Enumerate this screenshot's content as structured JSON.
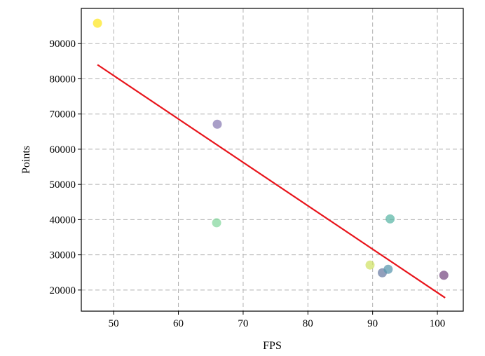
{
  "chart_data": {
    "type": "scatter",
    "title": "",
    "xlabel": "FPS",
    "ylabel": "Points",
    "xlim": [
      45,
      104
    ],
    "ylim": [
      14000,
      100000
    ],
    "xticks": [
      50,
      60,
      70,
      80,
      90,
      100
    ],
    "yticks": [
      20000,
      30000,
      40000,
      50000,
      60000,
      70000,
      80000,
      90000
    ],
    "grid": true,
    "points": [
      {
        "x": 47.5,
        "y": 95800,
        "color": "#fde725"
      },
      {
        "x": 66.0,
        "y": 67100,
        "color": "#8c7fb6"
      },
      {
        "x": 65.9,
        "y": 39100,
        "color": "#88d8a0"
      },
      {
        "x": 92.7,
        "y": 40200,
        "color": "#5fb8a8"
      },
      {
        "x": 89.6,
        "y": 27100,
        "color": "#d2e36a"
      },
      {
        "x": 91.5,
        "y": 24900,
        "color": "#6d7fa6"
      },
      {
        "x": 92.4,
        "y": 25900,
        "color": "#5c9ab0"
      },
      {
        "x": 101.0,
        "y": 24200,
        "color": "#7b4f86"
      }
    ],
    "trendline": {
      "x": [
        47.5,
        101.2
      ],
      "y": [
        84000,
        17800
      ],
      "color": "#e8141b"
    }
  }
}
